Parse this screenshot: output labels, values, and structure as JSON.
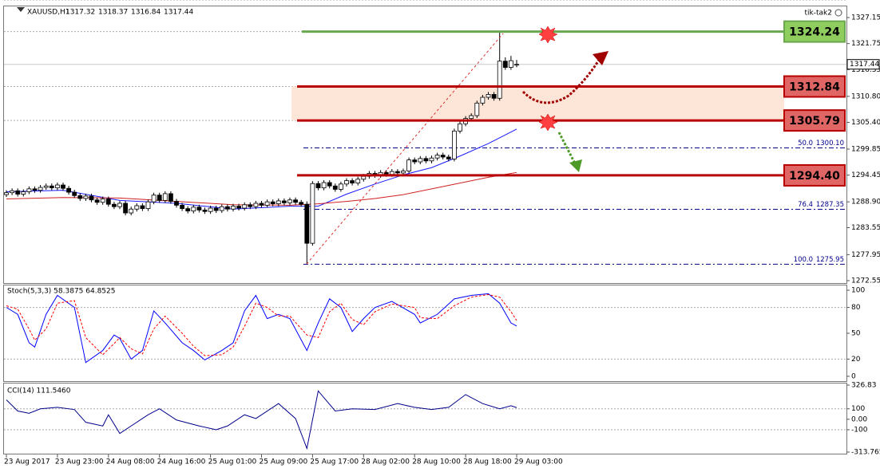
{
  "chart_data": [
    {
      "type": "candlestick",
      "symbol": "XAUUSD,H1",
      "expert": "tik-tak2",
      "bull_color": "#ffffff",
      "bear_color": "#000000",
      "open": [
        1290.4,
        1290.8,
        1291.2,
        1290.5,
        1291.0,
        1291.6,
        1291.3,
        1291.9,
        1292.2,
        1291.8,
        1292.4,
        1291.7,
        1290.9,
        1290.2,
        1289.6,
        1290.1,
        1289.3,
        1288.8,
        1289.5,
        1288.4,
        1287.9,
        1288.6,
        1286.6,
        1287.4,
        1288.1,
        1287.5,
        1288.9,
        1290.3,
        1289.2,
        1290.6,
        1289.0,
        1288.2,
        1287.5,
        1287.0,
        1287.8,
        1287.2,
        1286.9,
        1287.6,
        1287.1,
        1287.9,
        1287.4,
        1288.0,
        1287.6,
        1288.3,
        1287.9,
        1288.6,
        1288.2,
        1288.9,
        1288.5,
        1289.1,
        1288.7,
        1289.3,
        1288.8,
        1288.4,
        1280.3,
        1292.7,
        1291.8,
        1292.9,
        1292.2,
        1291.5,
        1292.6,
        1293.3,
        1292.8,
        1293.6,
        1294.2,
        1294.8,
        1294.4,
        1295.0,
        1294.6,
        1295.2,
        1294.9,
        1295.3,
        1297.6,
        1297.2,
        1297.9,
        1297.4,
        1298.0,
        1298.6,
        1298.2,
        1297.8,
        1303.6,
        1305.1,
        1306.2,
        1306.8,
        1309.4,
        1310.6,
        1311.2,
        1310.4,
        1318.1,
        1316.8,
        1317.32
      ],
      "high": [
        1291.3,
        1291.7,
        1291.7,
        1291.5,
        1292.1,
        1292.1,
        1292.4,
        1292.7,
        1292.7,
        1292.9,
        1292.9,
        1292.2,
        1291.4,
        1290.7,
        1290.6,
        1290.6,
        1289.8,
        1290.0,
        1290.0,
        1288.9,
        1289.1,
        1289.1,
        1287.9,
        1288.6,
        1288.6,
        1289.4,
        1290.8,
        1290.8,
        1291.1,
        1291.1,
        1289.5,
        1288.7,
        1288.0,
        1288.3,
        1288.3,
        1287.7,
        1288.1,
        1288.1,
        1288.4,
        1288.4,
        1288.5,
        1288.5,
        1288.8,
        1288.8,
        1289.1,
        1289.1,
        1289.4,
        1289.4,
        1289.6,
        1289.6,
        1289.8,
        1289.8,
        1289.3,
        1289.0,
        1293.2,
        1293.2,
        1293.4,
        1293.4,
        1292.7,
        1293.1,
        1293.8,
        1293.8,
        1294.1,
        1294.7,
        1295.3,
        1295.3,
        1295.5,
        1295.5,
        1295.7,
        1295.7,
        1295.8,
        1298.1,
        1298.1,
        1298.4,
        1298.4,
        1298.5,
        1299.1,
        1299.1,
        1298.7,
        1304.1,
        1305.6,
        1306.7,
        1307.3,
        1309.9,
        1311.1,
        1311.7,
        1311.7,
        1324.24,
        1318.9,
        1319.2,
        1318.37
      ],
      "low": [
        1289.9,
        1290.3,
        1290.0,
        1290.0,
        1290.5,
        1290.8,
        1290.8,
        1291.4,
        1291.3,
        1291.3,
        1291.2,
        1290.4,
        1289.7,
        1289.1,
        1289.1,
        1288.8,
        1288.3,
        1288.3,
        1287.9,
        1287.4,
        1287.4,
        1286.1,
        1286.1,
        1286.9,
        1287.0,
        1287.0,
        1288.4,
        1288.7,
        1288.7,
        1288.5,
        1287.7,
        1287.0,
        1286.5,
        1286.5,
        1286.7,
        1286.4,
        1286.4,
        1286.6,
        1286.6,
        1286.9,
        1286.9,
        1287.1,
        1287.1,
        1287.4,
        1287.4,
        1287.7,
        1287.7,
        1288.0,
        1288.0,
        1288.2,
        1288.2,
        1288.3,
        1287.9,
        1275.95,
        1279.8,
        1291.3,
        1291.3,
        1291.7,
        1291.0,
        1291.0,
        1292.1,
        1292.3,
        1292.3,
        1293.1,
        1293.7,
        1293.9,
        1293.9,
        1294.1,
        1294.1,
        1294.4,
        1294.4,
        1294.8,
        1296.7,
        1296.7,
        1296.9,
        1296.9,
        1297.5,
        1297.7,
        1297.3,
        1297.3,
        1303.1,
        1304.6,
        1305.7,
        1306.3,
        1308.9,
        1310.1,
        1309.9,
        1309.9,
        1316.3,
        1316.3,
        1316.84
      ],
      "close": [
        1290.8,
        1291.2,
        1290.5,
        1291.0,
        1291.6,
        1291.3,
        1291.9,
        1292.2,
        1291.8,
        1292.4,
        1291.7,
        1290.9,
        1290.2,
        1289.6,
        1290.1,
        1289.3,
        1288.8,
        1289.5,
        1288.4,
        1287.9,
        1288.6,
        1286.6,
        1287.4,
        1288.1,
        1287.5,
        1288.9,
        1290.3,
        1289.2,
        1290.6,
        1289.0,
        1288.2,
        1287.5,
        1287.0,
        1287.8,
        1287.2,
        1286.9,
        1287.6,
        1287.1,
        1287.9,
        1287.4,
        1288.0,
        1287.6,
        1288.3,
        1287.9,
        1288.6,
        1288.2,
        1288.9,
        1288.5,
        1289.1,
        1288.7,
        1289.3,
        1288.8,
        1288.4,
        1280.3,
        1292.7,
        1291.8,
        1292.9,
        1292.2,
        1291.5,
        1292.6,
        1293.3,
        1292.8,
        1293.6,
        1294.2,
        1294.8,
        1294.4,
        1295.0,
        1294.6,
        1295.2,
        1294.9,
        1295.3,
        1297.6,
        1297.2,
        1297.9,
        1297.4,
        1298.0,
        1298.6,
        1298.2,
        1297.8,
        1303.6,
        1305.1,
        1306.2,
        1306.8,
        1309.4,
        1310.6,
        1311.2,
        1310.4,
        1318.1,
        1316.8,
        1318.2,
        1317.44
      ],
      "ylim": [
        1272.05,
        1329.47
      ],
      "yticks": [
        1327.15,
        1321.75,
        1316.35,
        {
          "value": 1310.8,
          "label": "1310.80"
        },
        {
          "value": 1305.4,
          "label": "1305.40"
        },
        1299.85,
        1294.45,
        {
          "value": 1288.9,
          "label": "1288.90"
        },
        1283.55,
        1277.95,
        1272.55
      ],
      "xticks": [
        {
          "value": 0,
          "label": "23 Aug 2017"
        },
        {
          "value": 9,
          "label": "23 Aug 23:00"
        },
        {
          "value": 18,
          "label": "24 Aug 08:00"
        },
        {
          "value": 27,
          "label": "24 Aug 16:00"
        },
        {
          "value": 36,
          "label": "25 Aug 01:00"
        },
        {
          "value": 45,
          "label": "25 Aug 09:00"
        },
        {
          "value": 54,
          "label": "25 Aug 17:00"
        },
        {
          "value": 63,
          "label": "28 Aug 02:00"
        },
        {
          "value": 72,
          "label": "28 Aug 10:00"
        },
        {
          "value": 81,
          "label": "28 Aug 18:00"
        },
        {
          "value": 90,
          "label": "29 Aug 03:00"
        }
      ],
      "moving_averages": [
        {
          "color": "#1a1aff",
          "x": [
            0,
            10,
            20,
            30,
            40,
            50,
            55,
            60,
            65,
            70,
            75,
            80,
            85,
            90
          ],
          "values": [
            1291,
            1291.3,
            1289.2,
            1288.6,
            1287.4,
            1288.0,
            1288.0,
            1290.5,
            1292.6,
            1294.5,
            1296.0,
            1298.4,
            1301.0,
            1304.0
          ]
        },
        {
          "color": "#d02020",
          "x": [
            0,
            10,
            20,
            30,
            40,
            50,
            55,
            60,
            65,
            70,
            75,
            80,
            85,
            90
          ],
          "values": [
            1289.5,
            1289.8,
            1289.7,
            1289.0,
            1288.3,
            1288.2,
            1288.5,
            1289.0,
            1289.6,
            1290.4,
            1291.6,
            1292.8,
            1294.0,
            1295.0
          ]
        }
      ],
      "levels": [
        {
          "value": 1324.24,
          "color": "#6aa84f",
          "box": "#8fce5e"
        },
        {
          "value": 1312.84,
          "color": "#b80000",
          "box": "#e06666"
        },
        {
          "value": 1305.79,
          "color": "#b80000",
          "box": "#e06666"
        },
        {
          "value": {
            "value": 1294.4,
            "label": "1294.40"
          },
          "color": "#b80000",
          "box": "#e06666"
        }
      ],
      "zone_color": "#fde6d8",
      "fibonacci": [
        {
          "ratio": {
            "value": 50,
            "label": "50.0"
          },
          "price": {
            "value": 1300.1,
            "label": "1300.10"
          }
        },
        {
          "ratio": 76.4,
          "price": 1287.35
        },
        {
          "ratio": {
            "value": 100,
            "label": "100.0"
          },
          "price": 1275.95
        }
      ]
    },
    {
      "type": "line",
      "title": "Stoch(5,3,3) 58.3875 64.8525",
      "x": [
        0,
        2,
        4,
        5,
        7,
        9,
        12,
        14,
        17,
        19,
        20,
        22,
        24,
        26,
        28,
        31,
        33,
        35,
        38,
        40,
        42,
        44,
        46,
        48,
        50,
        53,
        55,
        57,
        59,
        61,
        63,
        65,
        68,
        72,
        73,
        76,
        79,
        82,
        85,
        87,
        89,
        90
      ],
      "series": [
        {
          "color": "#0000ff",
          "dash": false,
          "values": [
            80,
            72,
            39,
            34,
            72,
            94,
            80,
            16,
            30,
            48,
            44,
            20,
            30,
            76,
            62,
            39,
            30,
            19,
            30,
            39,
            76,
            94,
            67,
            72,
            67,
            30,
            62,
            90,
            80,
            52,
            67,
            80,
            87,
            72,
            62,
            72,
            90,
            94,
            96,
            85,
            62,
            58.3875
          ]
        },
        {
          "color": "#ff0000",
          "dash": true,
          "values": [
            82,
            78,
            55,
            42,
            55,
            85,
            88,
            45,
            25,
            38,
            45,
            32,
            26,
            55,
            70,
            50,
            35,
            24,
            25,
            34,
            58,
            85,
            80,
            70,
            70,
            48,
            45,
            75,
            85,
            66,
            60,
            75,
            84,
            80,
            68,
            67,
            82,
            92,
            95,
            92,
            75,
            64.8525
          ]
        }
      ],
      "ylim": [
        -5.6,
        105.6
      ],
      "yticks": [
        100,
        80,
        50,
        20,
        0
      ],
      "levels": [
        80,
        20
      ]
    },
    {
      "type": "line",
      "title": "CCI(14) 111.5460",
      "x": [
        0,
        2,
        4,
        6,
        9,
        12,
        14,
        17,
        18,
        20,
        22,
        25,
        27,
        30,
        34,
        37,
        39,
        42,
        44,
        48,
        51,
        53,
        55,
        58,
        61,
        65,
        69,
        72,
        75,
        78,
        81,
        84,
        87,
        89,
        90
      ],
      "series": [
        {
          "color": "#00008b",
          "dash": false,
          "values": [
            186,
            79,
            57,
            100,
            114,
            93,
            -29,
            -64,
            43,
            -136,
            -64,
            43,
            100,
            -7,
            -64,
            -100,
            -64,
            43,
            7,
            150,
            7,
            -279,
            271,
            79,
            100,
            93,
            150,
            114,
            93,
            114,
            236,
            150,
            100,
            129,
            111.546
          ]
        }
      ],
      "ylim": [
        -313.765,
        326.83
      ],
      "yticks": [
        326.83,
        100,
        {
          "value": 0,
          "label": "0.00"
        },
        -100,
        -313.765
      ],
      "levels": [
        100,
        -100
      ]
    }
  ]
}
